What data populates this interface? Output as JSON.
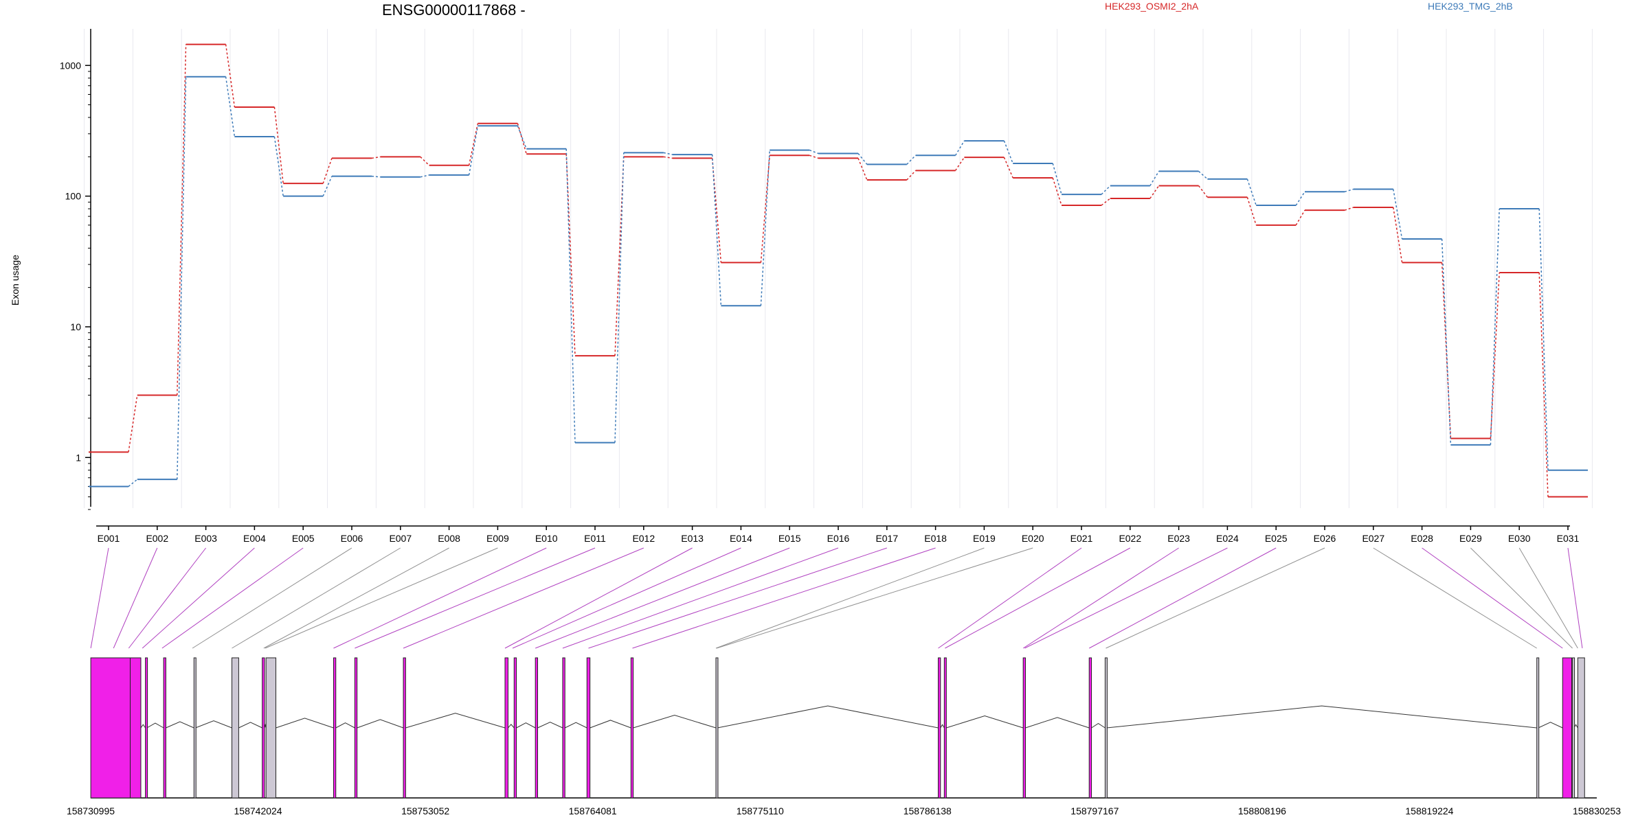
{
  "chart_data": {
    "type": "line",
    "title": "ENSG00000117868 -",
    "ylabel": "Exon usage",
    "xlabel": "",
    "y_scale": "log",
    "ylim": [
      0.4,
      2000
    ],
    "y_ticks": [
      1,
      10,
      100,
      1000
    ],
    "y_tick_labels": [
      "1",
      "10",
      "100",
      "1000"
    ],
    "categories": [
      "E001",
      "E002",
      "E003",
      "E004",
      "E005",
      "E006",
      "E007",
      "E008",
      "E009",
      "E010",
      "E011",
      "E012",
      "E013",
      "E014",
      "E015",
      "E016",
      "E017",
      "E018",
      "E019",
      "E020",
      "E021",
      "E022",
      "E023",
      "E024",
      "E025",
      "E026",
      "E027",
      "E028",
      "E029",
      "E030",
      "E031"
    ],
    "series": [
      {
        "name": "HEK293_OSMI2_2hA",
        "color": "#d62728",
        "values": [
          1.1,
          3.0,
          1450,
          480,
          125,
          195,
          200,
          172,
          360,
          210,
          6.0,
          200,
          195,
          31,
          205,
          195,
          133,
          157,
          198,
          138,
          85,
          96,
          120,
          98,
          60,
          78,
          82,
          31,
          1.4,
          26,
          0.5
        ]
      },
      {
        "name": "HEK293_TMG_2hB",
        "color": "#3d7ab8",
        "values": [
          0.6,
          0.68,
          820,
          285,
          100,
          142,
          140,
          145,
          345,
          230,
          1.3,
          215,
          208,
          14.5,
          225,
          212,
          175,
          205,
          265,
          178,
          103,
          120,
          155,
          135,
          85,
          108,
          113,
          47,
          1.25,
          80,
          0.8
        ]
      }
    ],
    "grid": "vertical-light",
    "legend_position": "top",
    "gene_model": {
      "coordinate_labels": [
        "158730995",
        "158742024",
        "158753052",
        "158764081",
        "158775110",
        "158786138",
        "158797167",
        "158808196",
        "158819224",
        "158830253"
      ],
      "start": 158730995,
      "end": 158830253,
      "exon_color": "#f020e8",
      "exon_alt_color": "#cdc8d4",
      "exons": [
        {
          "id": "E001",
          "start": 158731000,
          "end": 158733600,
          "color": "magenta"
        },
        {
          "id": "E002",
          "start": 158733600,
          "end": 158734300,
          "color": "magenta"
        },
        {
          "id": "E003",
          "start": 158734600,
          "end": 158734700,
          "color": "magenta"
        },
        {
          "id": "E004",
          "start": 158735800,
          "end": 158735950,
          "color": "magenta"
        },
        {
          "id": "E005",
          "start": 158737800,
          "end": 158737900,
          "color": "grey"
        },
        {
          "id": "E006",
          "start": 158740300,
          "end": 158740750,
          "color": "grey"
        },
        {
          "id": "E007",
          "start": 158742300,
          "end": 158742450,
          "color": "magenta"
        },
        {
          "id": "E008",
          "start": 158742550,
          "end": 158743200,
          "color": "grey"
        },
        {
          "id": "E009",
          "start": 158747000,
          "end": 158747150,
          "color": "magenta"
        },
        {
          "id": "E010",
          "start": 158748400,
          "end": 158748550,
          "color": "magenta"
        },
        {
          "id": "E011",
          "start": 158751600,
          "end": 158751750,
          "color": "magenta"
        },
        {
          "id": "E012",
          "start": 158758300,
          "end": 158758500,
          "color": "magenta"
        },
        {
          "id": "E013",
          "start": 158758900,
          "end": 158759050,
          "color": "magenta"
        },
        {
          "id": "E014",
          "start": 158760300,
          "end": 158760450,
          "color": "magenta"
        },
        {
          "id": "E015",
          "start": 158762100,
          "end": 158762250,
          "color": "magenta"
        },
        {
          "id": "E016",
          "start": 158763700,
          "end": 158763900,
          "color": "magenta"
        },
        {
          "id": "E017",
          "start": 158766600,
          "end": 158766750,
          "color": "magenta"
        },
        {
          "id": "E018",
          "start": 158772200,
          "end": 158772300,
          "color": "grey"
        },
        {
          "id": "E019",
          "start": 158786850,
          "end": 158787000,
          "color": "magenta"
        },
        {
          "id": "E020",
          "start": 158787250,
          "end": 158787380,
          "color": "magenta"
        },
        {
          "id": "E021",
          "start": 158792450,
          "end": 158792600,
          "color": "magenta"
        },
        {
          "id": "E022",
          "start": 158796800,
          "end": 158796950,
          "color": "magenta"
        },
        {
          "id": "E023",
          "start": 158797850,
          "end": 158797950,
          "color": "grey"
        },
        {
          "id": "E024",
          "start": 158826300,
          "end": 158826400,
          "color": "grey"
        },
        {
          "id": "E025",
          "start": 158828000,
          "end": 158828600,
          "color": "magenta"
        },
        {
          "id": "E026",
          "start": 158828650,
          "end": 158828750,
          "color": "grey"
        },
        {
          "id": "E027",
          "start": 158829000,
          "end": 158829450,
          "color": "grey"
        }
      ],
      "links": [
        [
          "E001",
          158731000
        ],
        [
          "E002",
          158732500
        ],
        [
          "E003",
          158733500
        ],
        [
          "E004",
          158734400
        ],
        [
          "E005",
          158735700
        ],
        [
          "E006",
          158737700
        ],
        [
          "E007",
          158740300
        ],
        [
          "E008",
          158742400
        ],
        [
          "E009",
          158742500
        ],
        [
          "E010",
          158747000
        ],
        [
          "E011",
          158748400
        ],
        [
          "E012",
          158751600
        ],
        [
          "E013",
          158758300
        ],
        [
          "E014",
          158758800
        ],
        [
          "E015",
          158760300
        ],
        [
          "E016",
          158762100
        ],
        [
          "E017",
          158763800
        ],
        [
          "E018",
          158766700
        ],
        [
          "E019",
          158772200
        ],
        [
          "E020",
          158772250
        ],
        [
          "E021",
          158786850
        ],
        [
          "E022",
          158787300
        ],
        [
          "E023",
          158792450
        ],
        [
          "E024",
          158792550
        ],
        [
          "E025",
          158796800
        ],
        [
          "E026",
          158797900
        ],
        [
          "E027",
          158826300
        ],
        [
          "E028",
          158828000
        ],
        [
          "E029",
          158828650
        ],
        [
          "E030",
          158829000
        ],
        [
          "E031",
          158829300
        ]
      ]
    }
  }
}
